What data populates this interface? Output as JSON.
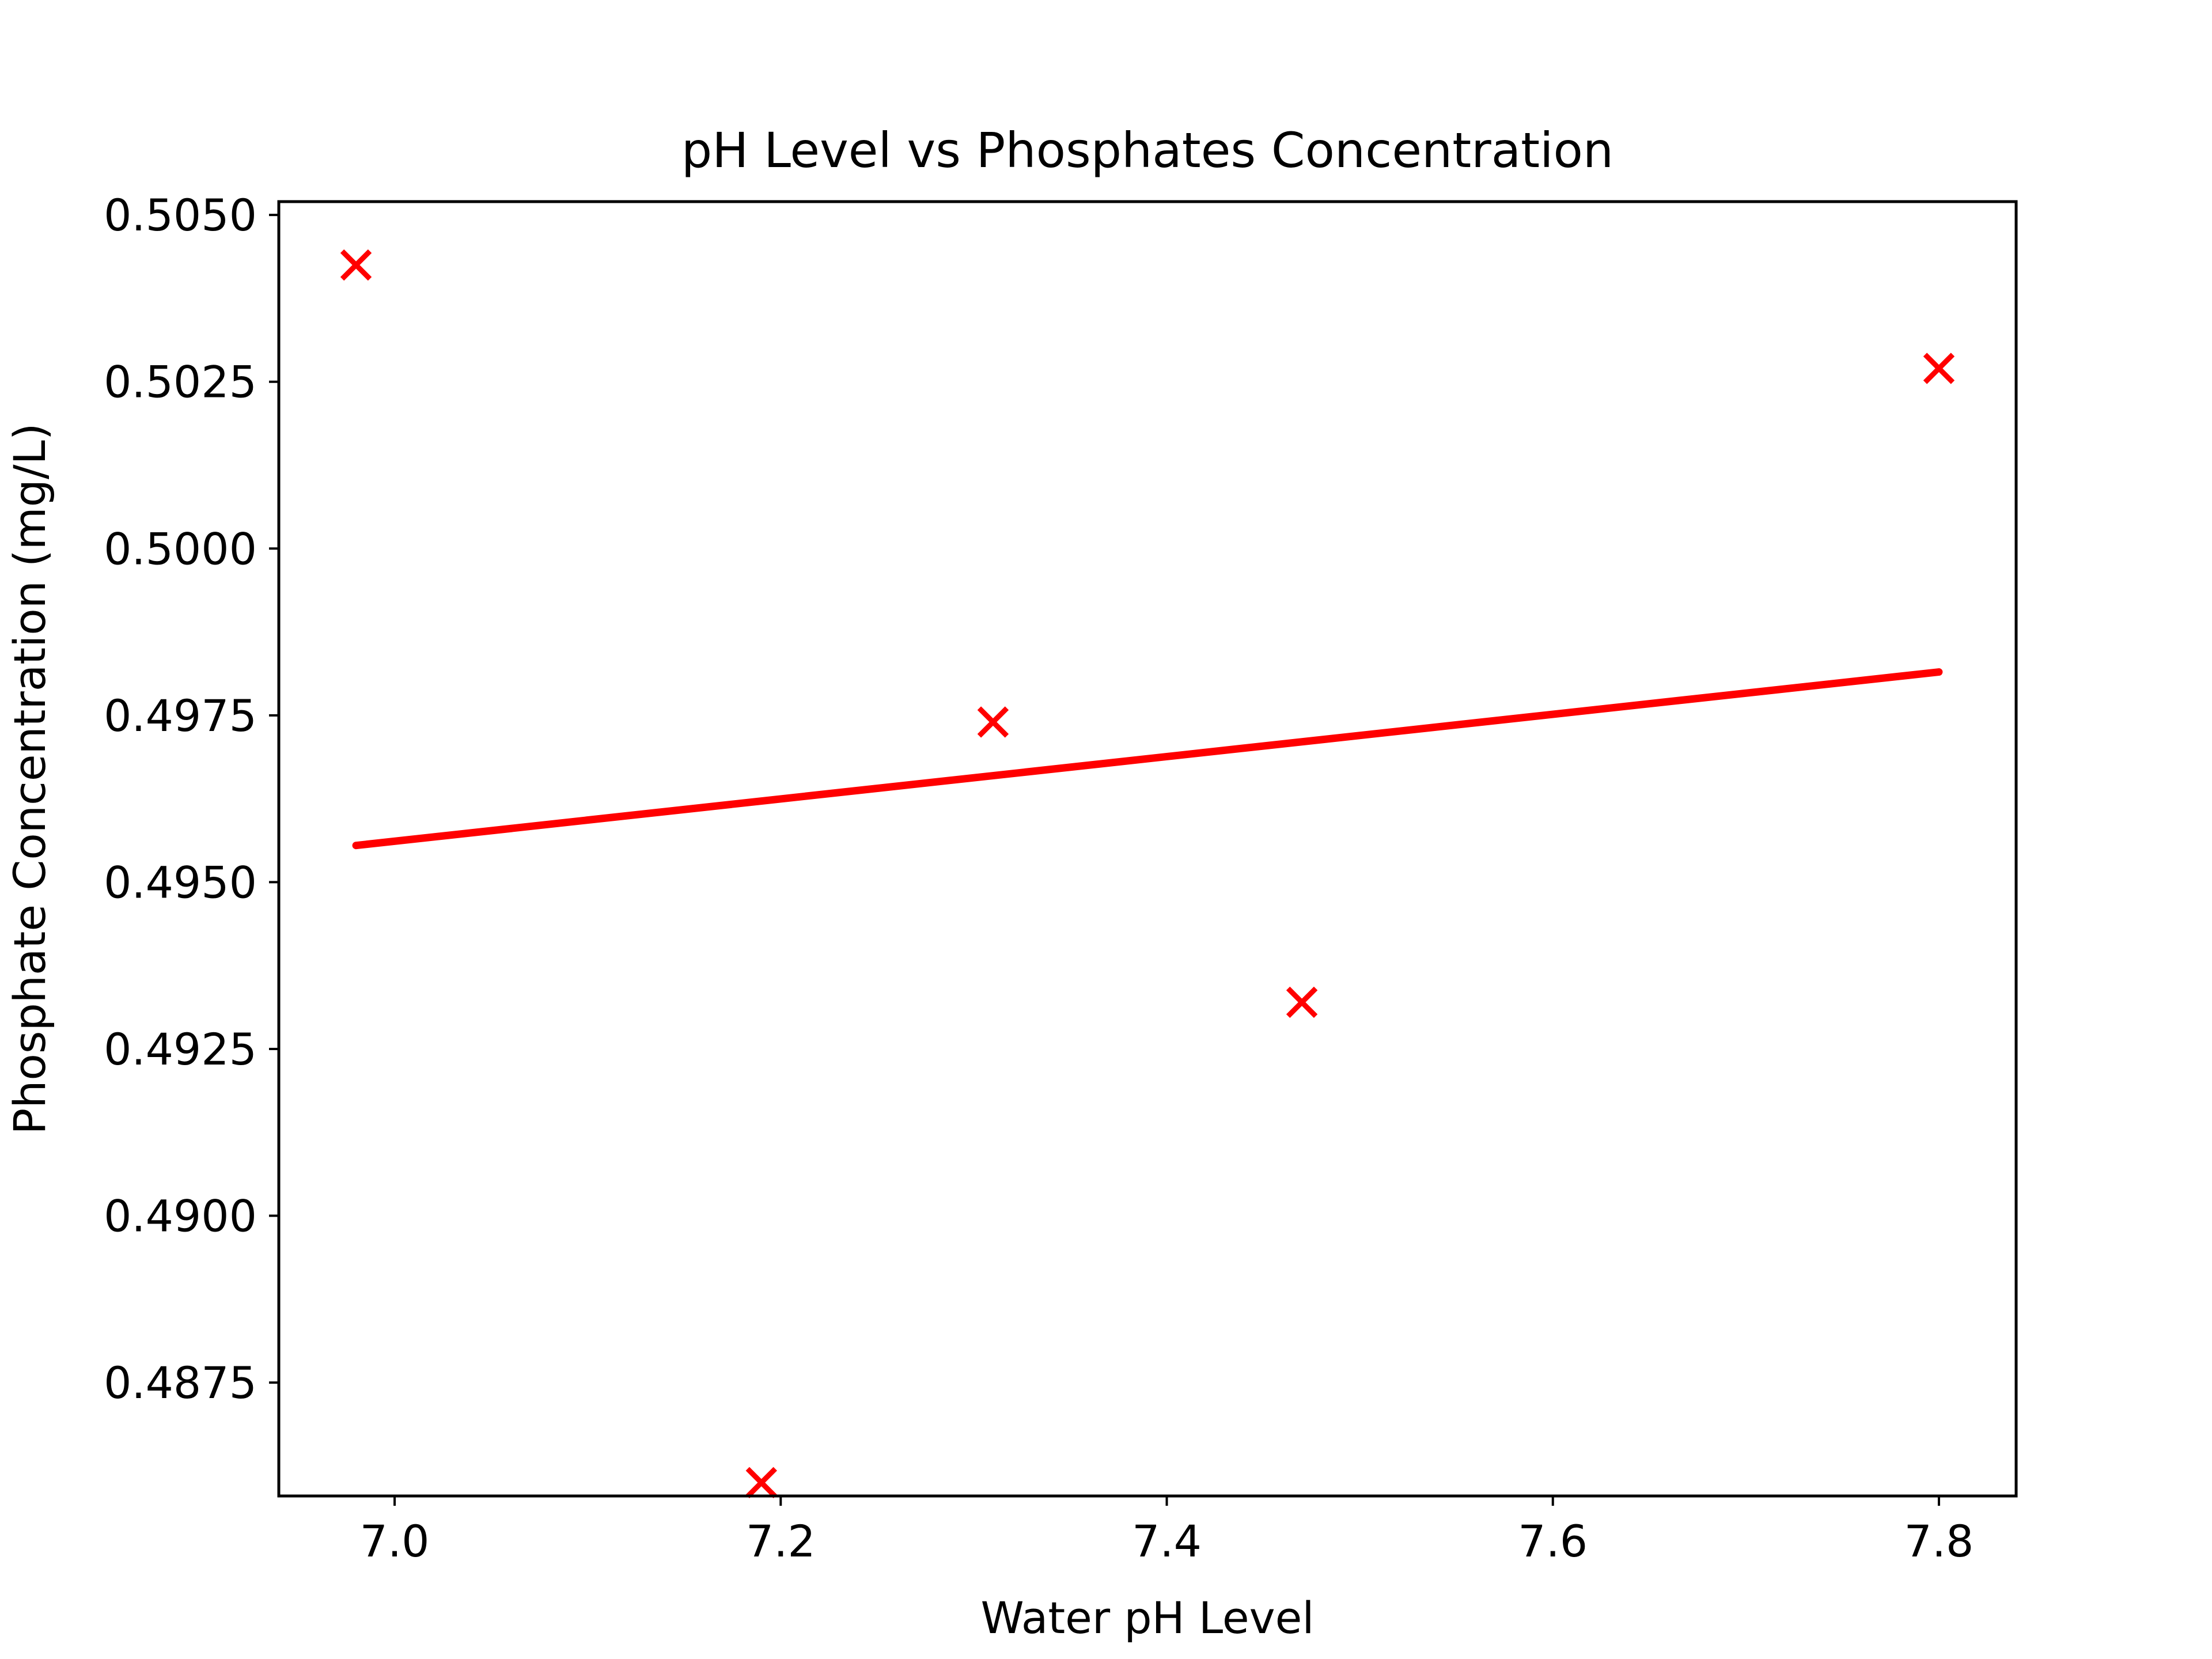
{
  "chart_data": {
    "type": "scatter",
    "title": "pH Level vs Phosphates Concentration",
    "xlabel": "Water pH Level",
    "ylabel": "Phosphate Concentration (mg/L)",
    "xlim": [
      6.94,
      7.84
    ],
    "ylim": [
      0.4858,
      0.5052
    ],
    "x_ticks": [
      7.0,
      7.2,
      7.4,
      7.6,
      7.8
    ],
    "x_tick_labels": [
      "7.0",
      "7.2",
      "7.4",
      "7.6",
      "7.8"
    ],
    "y_ticks": [
      0.4875,
      0.49,
      0.4925,
      0.495,
      0.4975,
      0.5,
      0.5025,
      0.505
    ],
    "y_tick_labels": [
      "0.4875",
      "0.4900",
      "0.4925",
      "0.4950",
      "0.4975",
      "0.5000",
      "0.5025",
      "0.5050"
    ],
    "grid": false,
    "color": "#ff0000",
    "points": {
      "x": [
        6.98,
        7.19,
        7.31,
        7.47,
        7.8
      ],
      "y": [
        0.50425,
        0.486,
        0.4974,
        0.4932,
        0.5027
      ]
    },
    "trend_line": {
      "x": [
        6.98,
        7.8
      ],
      "y": [
        0.49555,
        0.49815
      ]
    }
  }
}
